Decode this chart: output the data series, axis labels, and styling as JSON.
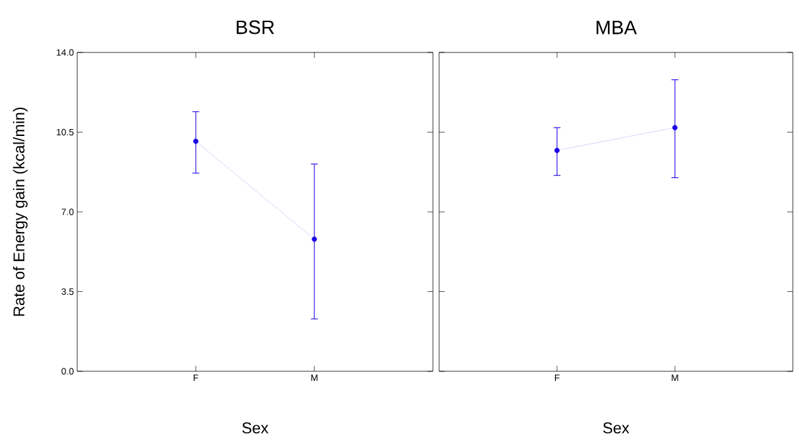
{
  "chart_data": [
    {
      "type": "line",
      "title": "BSR",
      "xlabel": "Sex",
      "ylabel": "Rate of Energy gain (kcal/min)",
      "categories": [
        "F",
        "M"
      ],
      "marker": "circle",
      "series": [
        {
          "color": "#1a00e6",
          "values": [
            10.1,
            5.8
          ],
          "errors": [
            [
              8.7,
              11.4
            ],
            [
              2.3,
              9.1
            ]
          ]
        }
      ],
      "ylim": [
        0,
        14
      ],
      "yticks": [
        {
          "value": 0,
          "label": "0.0"
        },
        {
          "value": 3.5,
          "label": "3.5"
        },
        {
          "value": 7,
          "label": "7.0"
        },
        {
          "value": 10.5,
          "label": "10.5"
        },
        {
          "value": 14,
          "label": "14.0"
        }
      ]
    },
    {
      "type": "line",
      "title": "MBA",
      "xlabel": "Sex",
      "categories": [
        "F",
        "M"
      ],
      "marker": "circle",
      "tick_labels": "x",
      "series": [
        {
          "color": "#1a00e6",
          "values": [
            9.7,
            10.7
          ],
          "errors": [
            [
              8.6,
              10.7
            ],
            [
              8.5,
              12.8
            ]
          ]
        }
      ],
      "ylim": [
        0,
        14
      ],
      "yticks": [
        {
          "value": 0,
          "label": null
        },
        {
          "value": 3.5,
          "label": null
        },
        {
          "value": 7,
          "label": null
        },
        {
          "value": 10.5,
          "label": null
        },
        {
          "value": 14,
          "label": null
        }
      ]
    }
  ]
}
